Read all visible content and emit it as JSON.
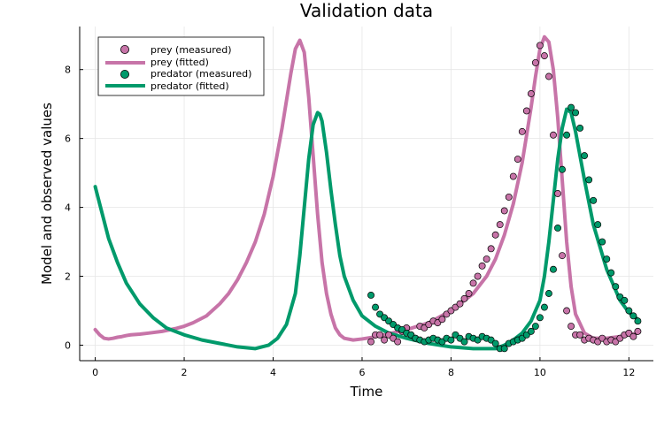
{
  "chart_data": {
    "type": "line",
    "title": "Validation data",
    "xlabel": "Time",
    "ylabel": "Model and observed values",
    "xlim": [
      -0.35,
      12.55
    ],
    "ylim": [
      -0.45,
      9.25
    ],
    "xticks": [
      0,
      2,
      4,
      6,
      8,
      10,
      12
    ],
    "yticks": [
      0,
      2,
      4,
      6,
      8
    ],
    "xtick_labels": [
      "0",
      "2",
      "4",
      "6",
      "8",
      "10",
      "12"
    ],
    "ytick_labels": [
      "0",
      "2",
      "4",
      "6",
      "8"
    ],
    "grid": true,
    "legend_position": "top-left",
    "colors": {
      "prey": "#c774a8",
      "predator": "#009a6b",
      "grid": "#e6e6e6",
      "axis": "#000000"
    },
    "series": [
      {
        "name": "prey (measured)",
        "kind": "scatter",
        "color": "#c774a8",
        "x": [
          6.2,
          6.3,
          6.4,
          6.5,
          6.6,
          6.7,
          6.8,
          6.9,
          7.0,
          7.1,
          7.2,
          7.3,
          7.4,
          7.5,
          7.6,
          7.7,
          7.8,
          7.9,
          8.0,
          8.1,
          8.2,
          8.3,
          8.4,
          8.5,
          8.6,
          8.7,
          8.8,
          8.9,
          9.0,
          9.1,
          9.2,
          9.3,
          9.4,
          9.5,
          9.6,
          9.7,
          9.8,
          9.9,
          10.0,
          10.1,
          10.2,
          10.3,
          10.4,
          10.5,
          10.6,
          10.7,
          10.8,
          10.9,
          11.0,
          11.1,
          11.2,
          11.3,
          11.4,
          11.5,
          11.6,
          11.7,
          11.8,
          11.9,
          12.0,
          12.1,
          12.2
        ],
        "y": [
          0.1,
          0.3,
          0.3,
          0.15,
          0.3,
          0.2,
          0.1,
          0.4,
          0.5,
          0.3,
          0.2,
          0.55,
          0.5,
          0.6,
          0.7,
          0.65,
          0.75,
          0.9,
          1.0,
          1.1,
          1.2,
          1.35,
          1.5,
          1.8,
          2.0,
          2.3,
          2.5,
          2.8,
          3.2,
          3.5,
          3.9,
          4.3,
          4.9,
          5.4,
          6.2,
          6.8,
          7.3,
          8.2,
          8.7,
          8.4,
          7.8,
          6.1,
          4.4,
          2.6,
          1.0,
          0.55,
          0.3,
          0.3,
          0.15,
          0.2,
          0.15,
          0.1,
          0.2,
          0.1,
          0.15,
          0.1,
          0.2,
          0.3,
          0.35,
          0.25,
          0.4
        ]
      },
      {
        "name": "prey (fitted)",
        "kind": "line",
        "color": "#c774a8",
        "x": [
          0,
          0.1,
          0.2,
          0.3,
          0.4,
          0.5,
          0.6,
          0.7,
          0.8,
          1.0,
          1.2,
          1.5,
          1.8,
          2.0,
          2.2,
          2.5,
          2.8,
          3.0,
          3.2,
          3.4,
          3.6,
          3.8,
          4.0,
          4.1,
          4.2,
          4.3,
          4.4,
          4.5,
          4.6,
          4.7,
          4.8,
          4.9,
          5.0,
          5.1,
          5.2,
          5.3,
          5.4,
          5.5,
          5.6,
          5.8,
          6.0,
          6.2,
          6.5,
          7.0,
          7.5,
          8.0,
          8.5,
          8.8,
          9.0,
          9.2,
          9.4,
          9.6,
          9.8,
          9.9,
          10.0,
          10.1,
          10.2,
          10.3,
          10.4,
          10.5,
          10.6,
          10.7,
          10.8,
          11.0,
          11.2,
          11.5,
          11.8,
          12.0,
          12.2
        ],
        "y": [
          0.45,
          0.3,
          0.2,
          0.18,
          0.2,
          0.23,
          0.25,
          0.28,
          0.3,
          0.32,
          0.35,
          0.4,
          0.48,
          0.55,
          0.65,
          0.85,
          1.2,
          1.5,
          1.9,
          2.4,
          3.0,
          3.8,
          4.9,
          5.6,
          6.3,
          7.1,
          7.9,
          8.6,
          8.85,
          8.5,
          7.2,
          5.5,
          3.8,
          2.4,
          1.5,
          0.9,
          0.5,
          0.3,
          0.2,
          0.15,
          0.18,
          0.22,
          0.3,
          0.45,
          0.65,
          1.0,
          1.5,
          2.0,
          2.5,
          3.2,
          4.1,
          5.3,
          6.9,
          7.8,
          8.6,
          8.95,
          8.8,
          8.0,
          6.6,
          4.8,
          3.0,
          1.7,
          0.9,
          0.35,
          0.2,
          0.2,
          0.25,
          0.3,
          0.35
        ]
      },
      {
        "name": "predator (measured)",
        "kind": "scatter",
        "color": "#009a6b",
        "x": [
          6.2,
          6.3,
          6.4,
          6.5,
          6.6,
          6.7,
          6.8,
          6.9,
          7.0,
          7.1,
          7.2,
          7.3,
          7.4,
          7.5,
          7.6,
          7.7,
          7.8,
          7.9,
          8.0,
          8.1,
          8.2,
          8.3,
          8.4,
          8.5,
          8.6,
          8.7,
          8.8,
          8.9,
          9.0,
          9.1,
          9.2,
          9.3,
          9.4,
          9.5,
          9.6,
          9.7,
          9.8,
          9.9,
          10.0,
          10.1,
          10.2,
          10.3,
          10.4,
          10.5,
          10.6,
          10.7,
          10.8,
          10.9,
          11.0,
          11.1,
          11.2,
          11.3,
          11.4,
          11.5,
          11.6,
          11.7,
          11.8,
          11.9,
          12.0,
          12.1,
          12.2
        ],
        "y": [
          1.45,
          1.1,
          0.9,
          0.8,
          0.7,
          0.6,
          0.5,
          0.45,
          0.35,
          0.3,
          0.2,
          0.15,
          0.1,
          0.15,
          0.2,
          0.15,
          0.1,
          0.2,
          0.15,
          0.3,
          0.2,
          0.1,
          0.25,
          0.2,
          0.15,
          0.25,
          0.2,
          0.15,
          0.05,
          -0.1,
          -0.1,
          0.05,
          0.1,
          0.15,
          0.2,
          0.3,
          0.4,
          0.55,
          0.8,
          1.1,
          1.5,
          2.2,
          3.4,
          5.1,
          6.1,
          6.9,
          6.75,
          6.3,
          5.5,
          4.8,
          4.2,
          3.5,
          3.0,
          2.5,
          2.1,
          1.7,
          1.4,
          1.3,
          1.0,
          0.85,
          0.7
        ]
      },
      {
        "name": "predator (fitted)",
        "kind": "line",
        "color": "#009a6b",
        "x": [
          0,
          0.1,
          0.2,
          0.3,
          0.5,
          0.7,
          1.0,
          1.3,
          1.6,
          2.0,
          2.4,
          2.8,
          3.2,
          3.6,
          3.9,
          4.1,
          4.3,
          4.5,
          4.6,
          4.7,
          4.8,
          4.9,
          5.0,
          5.05,
          5.1,
          5.2,
          5.3,
          5.4,
          5.5,
          5.6,
          5.8,
          6.0,
          6.3,
          6.6,
          7.0,
          7.5,
          8.0,
          8.5,
          9.0,
          9.2,
          9.4,
          9.6,
          9.8,
          10.0,
          10.1,
          10.2,
          10.3,
          10.4,
          10.5,
          10.6,
          10.7,
          10.8,
          11.0,
          11.2,
          11.5,
          11.8,
          12.0,
          12.2
        ],
        "y": [
          4.6,
          4.1,
          3.6,
          3.1,
          2.4,
          1.8,
          1.2,
          0.8,
          0.5,
          0.3,
          0.15,
          0.05,
          -0.05,
          -0.1,
          0.0,
          0.2,
          0.6,
          1.5,
          2.6,
          4.0,
          5.4,
          6.4,
          6.75,
          6.7,
          6.5,
          5.6,
          4.5,
          3.5,
          2.6,
          2.0,
          1.3,
          0.85,
          0.55,
          0.35,
          0.2,
          0.05,
          -0.05,
          -0.1,
          -0.1,
          0.0,
          0.15,
          0.35,
          0.7,
          1.3,
          2.0,
          3.0,
          4.2,
          5.4,
          6.3,
          6.85,
          6.75,
          6.2,
          4.8,
          3.5,
          2.2,
          1.3,
          0.95,
          0.75
        ]
      }
    ]
  }
}
